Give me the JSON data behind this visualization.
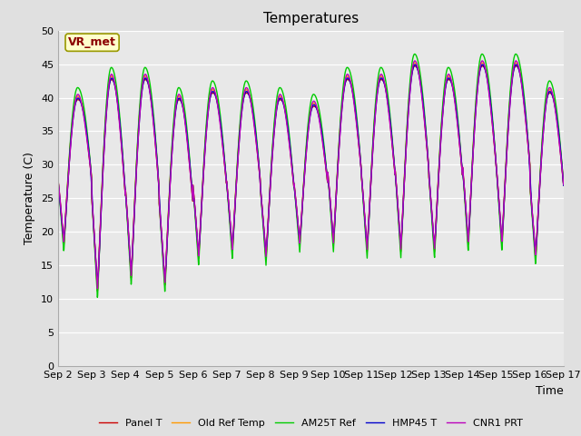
{
  "title": "Temperatures",
  "xlabel": "Time",
  "ylabel": "Temperature (C)",
  "ylim": [
    0,
    50
  ],
  "yticks": [
    0,
    5,
    10,
    15,
    20,
    25,
    30,
    35,
    40,
    45,
    50
  ],
  "annotation": "VR_met",
  "background_color": "#e0e0e0",
  "plot_bg_color": "#e8e8e8",
  "legend": [
    "Panel T",
    "Old Ref Temp",
    "AM25T Ref",
    "HMP45 T",
    "CNR1 PRT"
  ],
  "line_colors": [
    "#cc0000",
    "#ff9900",
    "#00cc00",
    "#0000cc",
    "#bb00bb"
  ],
  "xticklabels": [
    "Sep 2",
    "Sep 3",
    "Sep 4",
    "Sep 5",
    "Sep 6",
    "Sep 7",
    "Sep 8",
    "Sep 9",
    "Sep 10",
    "Sep 11",
    "Sep 12",
    "Sep 13",
    "Sep 14",
    "Sep 15",
    "Sep 16",
    "Sep 17"
  ],
  "n_days": 15,
  "samples_per_day": 144
}
